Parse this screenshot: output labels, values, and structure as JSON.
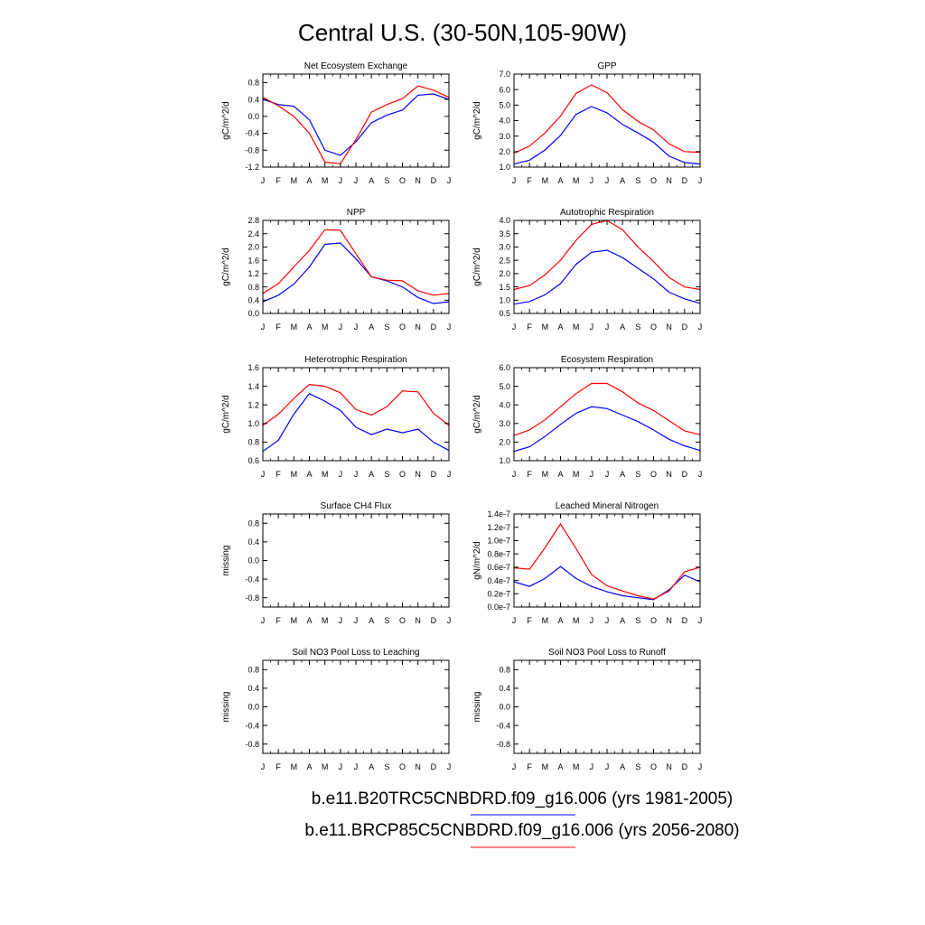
{
  "figure": {
    "title": "Central U.S. (30-50N,105-90W)",
    "colors": {
      "case1": "#0000ff",
      "case2": "#ff0000"
    },
    "legend": [
      {
        "label": "b.e11.B20TRC5CNBDRD.f09_g16.006 (yrs 1981-2005)",
        "color": "#0000ff"
      },
      {
        "label": "b.e11.BRCP85C5CNBDRD.f09_g16.006 (yrs 2056-2080)",
        "color": "#ff0000"
      }
    ]
  },
  "chart_data": [
    {
      "type": "line",
      "title": "Net Ecosystem Exchange",
      "ylabel": "gC/m^2/d",
      "x": [
        "J",
        "F",
        "M",
        "A",
        "M",
        "J",
        "J",
        "A",
        "S",
        "O",
        "N",
        "D",
        "J"
      ],
      "ylim": [
        -1.2,
        1.0
      ],
      "yticks": [
        "0.8",
        "0.4",
        "0.0",
        "-0.4",
        "-0.8",
        "-1.2"
      ],
      "ytick_values": [
        0.8,
        0.4,
        0.0,
        -0.4,
        -0.8,
        -1.2
      ],
      "series": [
        {
          "values": [
            0.4,
            0.28,
            0.24,
            -0.08,
            -0.8,
            -0.92,
            -0.6,
            -0.15,
            0.03,
            0.15,
            0.5,
            0.53,
            0.4
          ]
        },
        {
          "values": [
            0.45,
            0.25,
            0.0,
            -0.4,
            -1.08,
            -1.12,
            -0.55,
            0.1,
            0.28,
            0.42,
            0.72,
            0.62,
            0.45
          ]
        }
      ]
    },
    {
      "type": "line",
      "title": "GPP",
      "ylabel": "gC/m^2/d",
      "x": [
        "J",
        "F",
        "M",
        "A",
        "M",
        "J",
        "J",
        "A",
        "S",
        "O",
        "N",
        "D",
        "J"
      ],
      "ylim": [
        1.0,
        7.0
      ],
      "yticks": [
        "7.0",
        "6.0",
        "5.0",
        "4.0",
        "3.0",
        "2.0",
        "1.0"
      ],
      "ytick_values": [
        7.0,
        6.0,
        5.0,
        4.0,
        3.0,
        2.0,
        1.0
      ],
      "series": [
        {
          "values": [
            1.2,
            1.45,
            2.1,
            3.05,
            4.4,
            4.9,
            4.5,
            3.75,
            3.2,
            2.6,
            1.7,
            1.3,
            1.2
          ]
        },
        {
          "values": [
            1.9,
            2.35,
            3.2,
            4.3,
            5.75,
            6.3,
            5.8,
            4.7,
            3.95,
            3.4,
            2.5,
            2.0,
            1.95
          ]
        }
      ]
    },
    {
      "type": "line",
      "title": "NPP",
      "ylabel": "gC/m^2/d",
      "x": [
        "J",
        "F",
        "M",
        "A",
        "M",
        "J",
        "J",
        "A",
        "S",
        "O",
        "N",
        "D",
        "J"
      ],
      "ylim": [
        0.0,
        2.8
      ],
      "yticks": [
        "2.8",
        "2.4",
        "2.0",
        "1.6",
        "1.2",
        "0.8",
        "0.4",
        "0.0"
      ],
      "ytick_values": [
        2.8,
        2.4,
        2.0,
        1.6,
        1.2,
        0.8,
        0.4,
        0.0
      ],
      "series": [
        {
          "values": [
            0.35,
            0.55,
            0.88,
            1.4,
            2.08,
            2.12,
            1.65,
            1.1,
            0.98,
            0.8,
            0.48,
            0.3,
            0.35
          ]
        },
        {
          "values": [
            0.6,
            0.9,
            1.4,
            1.9,
            2.52,
            2.5,
            1.8,
            1.1,
            1.0,
            0.98,
            0.68,
            0.55,
            0.6
          ]
        }
      ]
    },
    {
      "type": "line",
      "title": "Autotrophic Respiration",
      "ylabel": "gC/m^2/d",
      "x": [
        "J",
        "F",
        "M",
        "A",
        "M",
        "J",
        "J",
        "A",
        "S",
        "O",
        "N",
        "D",
        "J"
      ],
      "ylim": [
        0.5,
        4.0
      ],
      "yticks": [
        "4.0",
        "3.5",
        "3.0",
        "2.5",
        "2.0",
        "1.5",
        "1.0",
        "0.5"
      ],
      "ytick_values": [
        4.0,
        3.5,
        3.0,
        2.5,
        2.0,
        1.5,
        1.0,
        0.5
      ],
      "series": [
        {
          "values": [
            0.85,
            0.95,
            1.2,
            1.62,
            2.35,
            2.8,
            2.88,
            2.6,
            2.2,
            1.8,
            1.3,
            1.05,
            0.88
          ]
        },
        {
          "values": [
            1.4,
            1.55,
            1.95,
            2.5,
            3.25,
            3.85,
            4.0,
            3.65,
            3.0,
            2.45,
            1.85,
            1.5,
            1.4
          ]
        }
      ]
    },
    {
      "type": "line",
      "title": "Heterotrophic Respiration",
      "ylabel": "gC/m^2/d",
      "x": [
        "J",
        "F",
        "M",
        "A",
        "M",
        "J",
        "J",
        "A",
        "S",
        "O",
        "N",
        "D",
        "J"
      ],
      "ylim": [
        0.6,
        1.6
      ],
      "yticks": [
        "1.6",
        "1.4",
        "1.2",
        "1.0",
        "0.8",
        "0.6"
      ],
      "ytick_values": [
        1.6,
        1.4,
        1.2,
        1.0,
        0.8,
        0.6
      ],
      "series": [
        {
          "values": [
            0.7,
            0.82,
            1.1,
            1.32,
            1.24,
            1.14,
            0.96,
            0.88,
            0.94,
            0.9,
            0.94,
            0.8,
            0.71
          ]
        },
        {
          "values": [
            0.98,
            1.1,
            1.27,
            1.42,
            1.4,
            1.33,
            1.15,
            1.09,
            1.18,
            1.35,
            1.34,
            1.11,
            0.98
          ]
        }
      ]
    },
    {
      "type": "line",
      "title": "Ecosystem Respiration",
      "ylabel": "gC/m^2/d",
      "x": [
        "J",
        "F",
        "M",
        "A",
        "M",
        "J",
        "J",
        "A",
        "S",
        "O",
        "N",
        "D",
        "J"
      ],
      "ylim": [
        1.0,
        6.0
      ],
      "yticks": [
        "6.0",
        "5.0",
        "4.0",
        "3.0",
        "2.0",
        "1.0"
      ],
      "ytick_values": [
        6.0,
        5.0,
        4.0,
        3.0,
        2.0,
        1.0
      ],
      "series": [
        {
          "values": [
            1.5,
            1.75,
            2.3,
            2.95,
            3.55,
            3.9,
            3.8,
            3.45,
            3.1,
            2.65,
            2.15,
            1.8,
            1.55
          ]
        },
        {
          "values": [
            2.35,
            2.65,
            3.2,
            3.9,
            4.6,
            5.15,
            5.15,
            4.7,
            4.1,
            3.7,
            3.15,
            2.6,
            2.4
          ]
        }
      ]
    },
    {
      "type": "line",
      "title": "Surface CH4 Flux",
      "ylabel": "missing",
      "x": [
        "J",
        "F",
        "M",
        "A",
        "M",
        "J",
        "J",
        "A",
        "S",
        "O",
        "N",
        "D",
        "J"
      ],
      "ylim": [
        -1.0,
        1.0
      ],
      "yticks": [
        "0.8",
        "0.4",
        "0.0",
        "-0.4",
        "-0.8"
      ],
      "ytick_values": [
        0.8,
        0.4,
        0.0,
        -0.4,
        -0.8
      ],
      "series": []
    },
    {
      "type": "line",
      "title": "Leached Mineral Nitrogen",
      "ylabel": "gN/m^2/d",
      "x": [
        "J",
        "F",
        "M",
        "A",
        "M",
        "J",
        "J",
        "A",
        "S",
        "O",
        "N",
        "D",
        "J"
      ],
      "ylim": [
        0.0,
        1.4e-07
      ],
      "yticks": [
        "1.4e-7",
        "1.2e-7",
        "1.0e-7",
        "0.8e-7",
        "0.6e-7",
        "0.4e-7",
        "0.2e-7",
        "0.0e-7"
      ],
      "ytick_values": [
        1.4e-07,
        1.2e-07,
        1e-07,
        8e-08,
        6e-08,
        4e-08,
        2e-08,
        0.0
      ],
      "series": [
        {
          "values": [
            3.8e-08,
            3.1e-08,
            4.3e-08,
            6.1e-08,
            4.3e-08,
            3.1e-08,
            2.3e-08,
            1.7e-08,
            1.4e-08,
            1.1e-08,
            2.6e-08,
            4.8e-08,
            3.8e-08
          ]
        },
        {
          "values": [
            5.9e-08,
            5.7e-08,
            8.9e-08,
            1.25e-07,
            8.8e-08,
            4.9e-08,
            3.2e-08,
            2.4e-08,
            1.7e-08,
            1.2e-08,
            2.4e-08,
            5.3e-08,
            6e-08
          ]
        }
      ]
    },
    {
      "type": "line",
      "title": "Soil NO3 Pool Loss to Leaching",
      "ylabel": "missing",
      "x": [
        "J",
        "F",
        "M",
        "A",
        "M",
        "J",
        "J",
        "A",
        "S",
        "O",
        "N",
        "D",
        "J"
      ],
      "ylim": [
        -1.0,
        1.0
      ],
      "yticks": [
        "0.8",
        "0.4",
        "0.0",
        "-0.4",
        "-0.8"
      ],
      "ytick_values": [
        0.8,
        0.4,
        0.0,
        -0.4,
        -0.8
      ],
      "series": []
    },
    {
      "type": "line",
      "title": "Soil NO3 Pool Loss to Runoff",
      "ylabel": "missing",
      "x": [
        "J",
        "F",
        "M",
        "A",
        "M",
        "J",
        "J",
        "A",
        "S",
        "O",
        "N",
        "D",
        "J"
      ],
      "ylim": [
        -1.0,
        1.0
      ],
      "yticks": [
        "0.8",
        "0.4",
        "0.0",
        "-0.4",
        "-0.8"
      ],
      "ytick_values": [
        0.8,
        0.4,
        0.0,
        -0.4,
        -0.8
      ],
      "series": []
    }
  ]
}
